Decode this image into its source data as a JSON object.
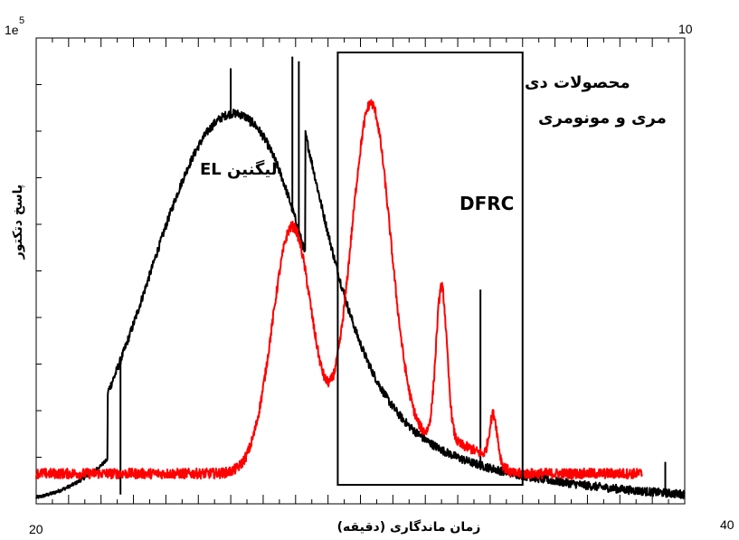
{
  "chart_data": {
    "type": "line",
    "title": "",
    "xlabel": "زمان ماندگاری (دقیقه)",
    "ylabel": "پاسخ دتکتور",
    "xlim": [
      20,
      40
    ],
    "x_tick_labels": [
      "20",
      "40"
    ],
    "y_multiplier_label": "1e",
    "y_multiplier_exp": "5",
    "y_top_label": "10",
    "grid": false,
    "annotations": {
      "el_label": "لیگنین EL",
      "box_label_line1": "محصولات دی",
      "box_label_line2": "مری و مونومری",
      "dfrc_label": "DFRC"
    },
    "highlight_box_x": [
      29.3,
      35.0
    ],
    "series": [
      {
        "color": "#000000",
        "peaks": [
          {
            "center": 25.8,
            "width": 2.3,
            "height": 8.1
          },
          {
            "center": 27.7,
            "width": 1.1,
            "height": 1.0
          }
        ],
        "tail": {
          "start": 28.3,
          "height": 2.6,
          "decay": 4.6
        },
        "spikes": [
          {
            "x": 26.0,
            "height": 9.35
          },
          {
            "x": 26.6,
            "height": 8.1
          },
          {
            "x": 27.9,
            "height": 9.6
          },
          {
            "x": 28.1,
            "height": 9.5
          },
          {
            "x": 33.7,
            "height": 4.6
          },
          {
            "x": 34.4,
            "height": 0.6
          },
          {
            "x": 39.4,
            "height": 0.9
          },
          {
            "x": 22.6,
            "height": 0.2
          }
        ],
        "noise": 0.18
      },
      {
        "color": "#ff0000",
        "baseline": 0.65,
        "peaks": [
          {
            "center": 27.9,
            "width": 0.62,
            "height": 5.3
          },
          {
            "center": 30.3,
            "width": 0.62,
            "height": 7.8
          },
          {
            "center": 32.5,
            "width": 0.17,
            "height": 3.3
          },
          {
            "center": 34.1,
            "width": 0.12,
            "height": 1.0
          }
        ],
        "shoulder": {
          "start": 30.0,
          "end": 34.7,
          "height": 0.7
        },
        "x_end": 38.7,
        "noise": 0.22
      }
    ]
  }
}
